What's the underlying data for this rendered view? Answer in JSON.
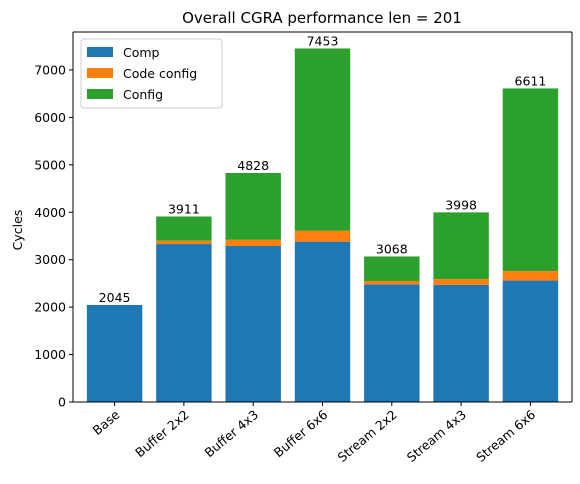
{
  "chart_data": {
    "type": "bar",
    "stacked": true,
    "title": "Overall CGRA performance len = 201",
    "xlabel": "",
    "ylabel": "Cycles",
    "ylim": [
      0,
      7800
    ],
    "yticks": [
      0,
      1000,
      2000,
      3000,
      4000,
      5000,
      6000,
      7000
    ],
    "grid": false,
    "legend_position": "top-left",
    "categories": [
      "Base",
      "Buffer 2x2",
      "Buffer 4x3",
      "Buffer 6x6",
      "Stream 2x2",
      "Stream 4x3",
      "Stream 6x6"
    ],
    "series": [
      {
        "name": "Comp",
        "color": "#1f77b4",
        "values": [
          2045,
          3330,
          3290,
          3380,
          2480,
          2470,
          2560
        ]
      },
      {
        "name": "Code config",
        "color": "#ff7f0e",
        "values": [
          0,
          70,
          130,
          230,
          70,
          120,
          200
        ]
      },
      {
        "name": "Config",
        "color": "#2ca02c",
        "values": [
          0,
          511,
          1408,
          3843,
          518,
          1408,
          3851
        ]
      }
    ],
    "totals": [
      2045,
      3911,
      4828,
      7453,
      3068,
      3998,
      6611
    ],
    "total_labels": [
      "2045",
      "3911",
      "4828",
      "7453",
      "3068",
      "3998",
      "6611"
    ]
  }
}
